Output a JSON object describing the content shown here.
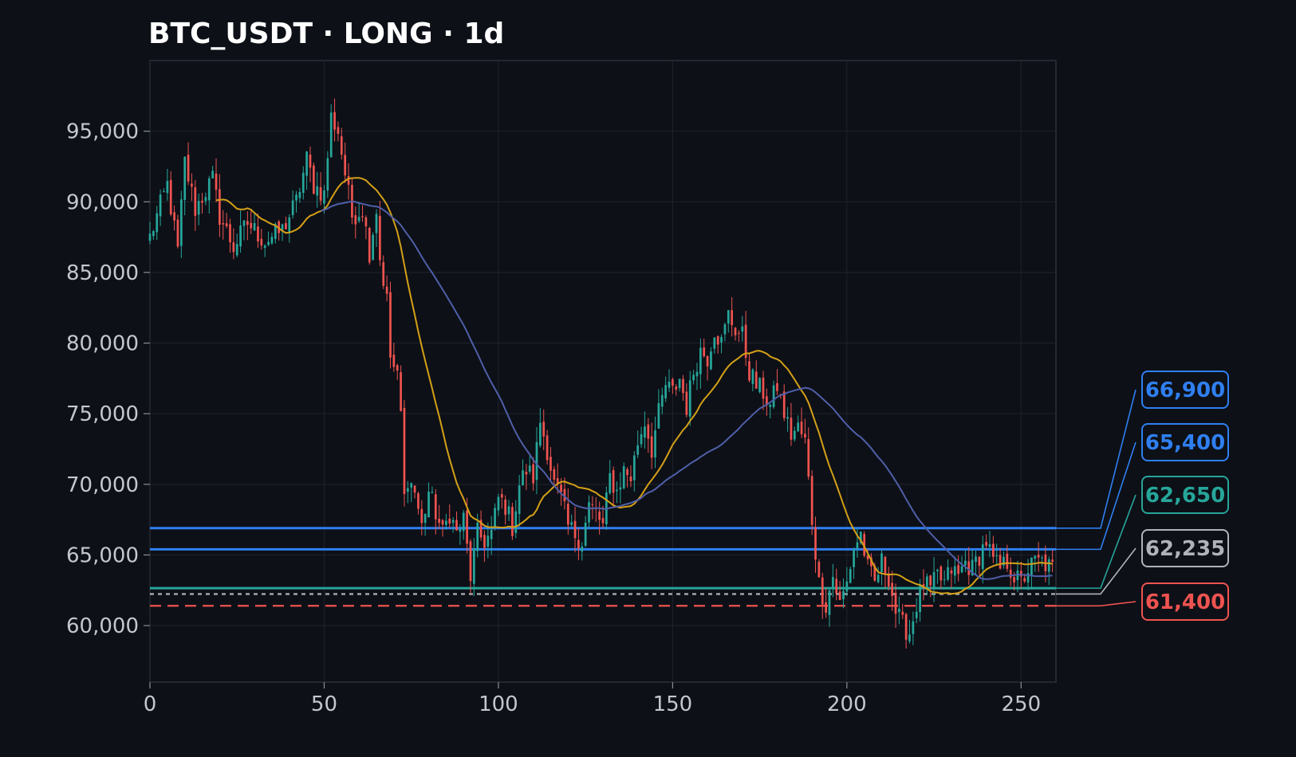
{
  "chart_data": {
    "type": "candlestick",
    "title": "BTC_USDT · LONG · 1d",
    "x_range": [
      0,
      260
    ],
    "y_range": [
      56000,
      100000
    ],
    "grid": true,
    "x_ticks": [
      0,
      50,
      100,
      150,
      200,
      250
    ],
    "y_ticks": [
      60000,
      65000,
      70000,
      75000,
      80000,
      85000,
      90000,
      95000
    ],
    "y_tick_labels": [
      "60,000",
      "65,000",
      "70,000",
      "75,000",
      "80,000",
      "85,000",
      "90,000",
      "95,000"
    ],
    "colors": {
      "background": "#0d1017",
      "plot_border": "#2d313a",
      "grid": "#1f232b",
      "up": "#26a69a",
      "down": "#ef5350",
      "ma_fast": "#d4a017",
      "ma_slow": "#4f5fa8"
    },
    "price_path_anchors": [
      [
        0,
        87500
      ],
      [
        5,
        91200
      ],
      [
        8,
        86500
      ],
      [
        10,
        92800
      ],
      [
        13,
        89500
      ],
      [
        16,
        90800
      ],
      [
        18,
        91600
      ],
      [
        20,
        89000
      ],
      [
        24,
        86800
      ],
      [
        28,
        88500
      ],
      [
        33,
        87200
      ],
      [
        38,
        88000
      ],
      [
        42,
        90000
      ],
      [
        45,
        93000
      ],
      [
        47,
        91200
      ],
      [
        50,
        90500
      ],
      [
        52,
        96000
      ],
      [
        54,
        95000
      ],
      [
        56,
        92000
      ],
      [
        58,
        89000
      ],
      [
        61,
        89500
      ],
      [
        63,
        86500
      ],
      [
        65,
        89500
      ],
      [
        66,
        86000
      ],
      [
        68,
        83000
      ],
      [
        69,
        79000
      ],
      [
        71,
        77500
      ],
      [
        72,
        75000
      ],
      [
        73,
        69000
      ],
      [
        74,
        70500
      ],
      [
        76,
        69500
      ],
      [
        78,
        67000
      ],
      [
        80,
        69500
      ],
      [
        82,
        68000
      ],
      [
        84,
        66500
      ],
      [
        86,
        68000
      ],
      [
        88,
        66500
      ],
      [
        90,
        67500
      ],
      [
        92,
        63500
      ],
      [
        94,
        66500
      ],
      [
        96,
        66000
      ],
      [
        98,
        66500
      ],
      [
        100,
        69000
      ],
      [
        102,
        68500
      ],
      [
        104,
        67000
      ],
      [
        106,
        70000
      ],
      [
        108,
        71000
      ],
      [
        110,
        70500
      ],
      [
        112,
        74500
      ],
      [
        114,
        72500
      ],
      [
        116,
        70000
      ],
      [
        118,
        69000
      ],
      [
        120,
        67000
      ],
      [
        122,
        66500
      ],
      [
        124,
        66000
      ],
      [
        126,
        68500
      ],
      [
        128,
        68000
      ],
      [
        130,
        67000
      ],
      [
        132,
        70500
      ],
      [
        134,
        69500
      ],
      [
        136,
        71000
      ],
      [
        138,
        70500
      ],
      [
        140,
        73000
      ],
      [
        142,
        74500
      ],
      [
        144,
        72500
      ],
      [
        146,
        75000
      ],
      [
        148,
        77000
      ],
      [
        150,
        76500
      ],
      [
        152,
        77500
      ],
      [
        154,
        75500
      ],
      [
        156,
        78000
      ],
      [
        158,
        79500
      ],
      [
        160,
        79000
      ],
      [
        162,
        81000
      ],
      [
        164,
        80000
      ],
      [
        166,
        82000
      ],
      [
        168,
        81000
      ],
      [
        170,
        80500
      ],
      [
        172,
        78000
      ],
      [
        174,
        77000
      ],
      [
        176,
        76500
      ],
      [
        178,
        75500
      ],
      [
        180,
        77000
      ],
      [
        182,
        75000
      ],
      [
        184,
        73500
      ],
      [
        186,
        74000
      ],
      [
        188,
        73000
      ],
      [
        190,
        67500
      ],
      [
        192,
        63000
      ],
      [
        194,
        61500
      ],
      [
        196,
        63500
      ],
      [
        198,
        61500
      ],
      [
        200,
        63000
      ],
      [
        202,
        65500
      ],
      [
        204,
        66500
      ],
      [
        206,
        64000
      ],
      [
        208,
        63000
      ],
      [
        210,
        64500
      ],
      [
        212,
        63500
      ],
      [
        214,
        61000
      ],
      [
        216,
        60000
      ],
      [
        218,
        59500
      ],
      [
        220,
        61500
      ],
      [
        222,
        63000
      ],
      [
        224,
        62500
      ],
      [
        226,
        63500
      ],
      [
        228,
        63000
      ],
      [
        230,
        64000
      ],
      [
        232,
        63500
      ],
      [
        234,
        64500
      ],
      [
        236,
        64000
      ],
      [
        238,
        65000
      ],
      [
        240,
        66000
      ],
      [
        242,
        64500
      ],
      [
        244,
        64000
      ],
      [
        246,
        64500
      ],
      [
        248,
        63500
      ],
      [
        250,
        63000
      ],
      [
        252,
        64000
      ],
      [
        254,
        64500
      ],
      [
        256,
        64500
      ],
      [
        259,
        64000
      ]
    ],
    "moving_averages": [
      {
        "period": 20,
        "color": "#d4a017",
        "start_index": 19
      },
      {
        "period": 50,
        "color": "#4f5fa8",
        "start_index": 49
      }
    ],
    "levels": [
      {
        "label": "66,900",
        "value": 66900,
        "color": "#2f7ff0",
        "style": "solid",
        "badge": 66900
      },
      {
        "label": "65,400",
        "value": 65400,
        "color": "#2f7ff0",
        "style": "solid",
        "badge": 65400
      },
      {
        "label": "62,650",
        "value": 62650,
        "color": "#26a69a",
        "style": "solid",
        "badge": 62650
      },
      {
        "label": "62,235",
        "value": 62235,
        "color": "#b0b3ba",
        "style": "dotted",
        "badge": 62235
      },
      {
        "label": "61,400",
        "value": 61400,
        "color": "#ef5350",
        "style": "dashed",
        "badge": 61400
      }
    ]
  }
}
